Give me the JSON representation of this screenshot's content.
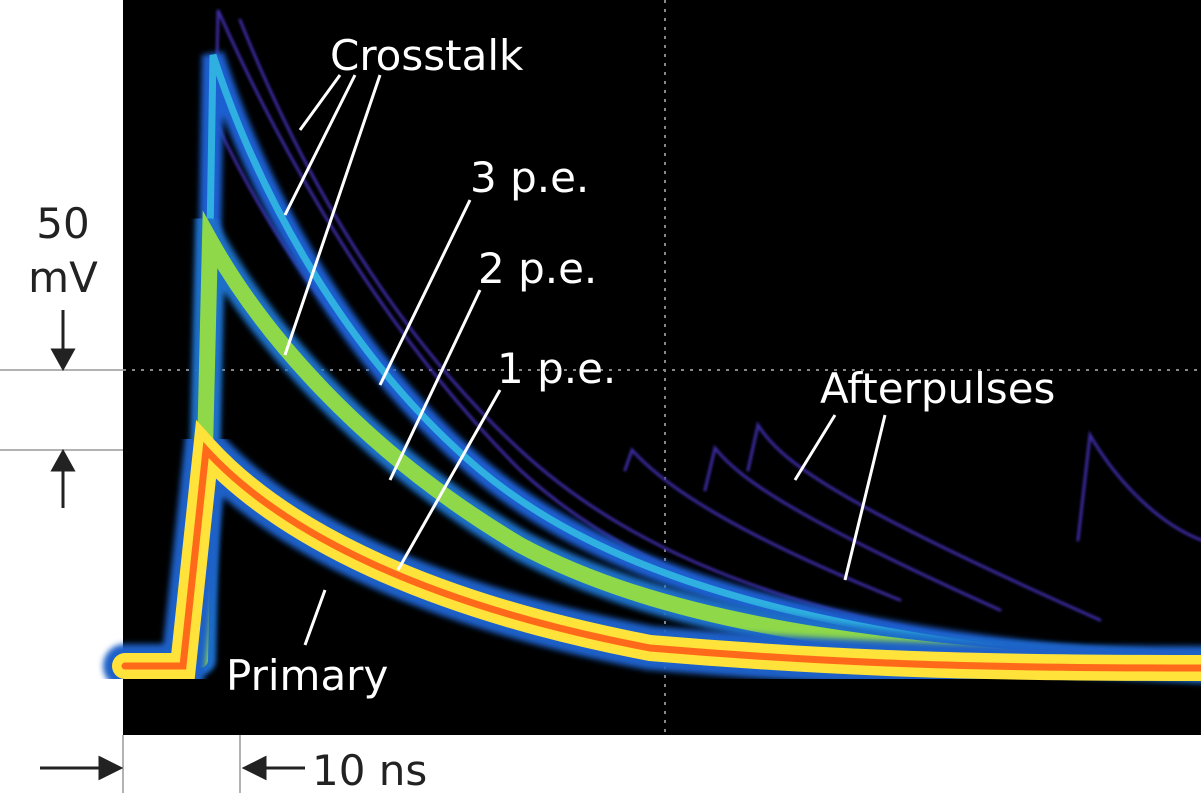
{
  "scale": {
    "voltage_value": "50",
    "voltage_unit": "mV",
    "time": "10 ns"
  },
  "labels": {
    "crosstalk": "Crosstalk",
    "three_pe": "3 p.e.",
    "two_pe": "2 p.e.",
    "one_pe": "1 p.e.",
    "afterpulses": "Afterpulses",
    "primary": "Primary"
  }
}
